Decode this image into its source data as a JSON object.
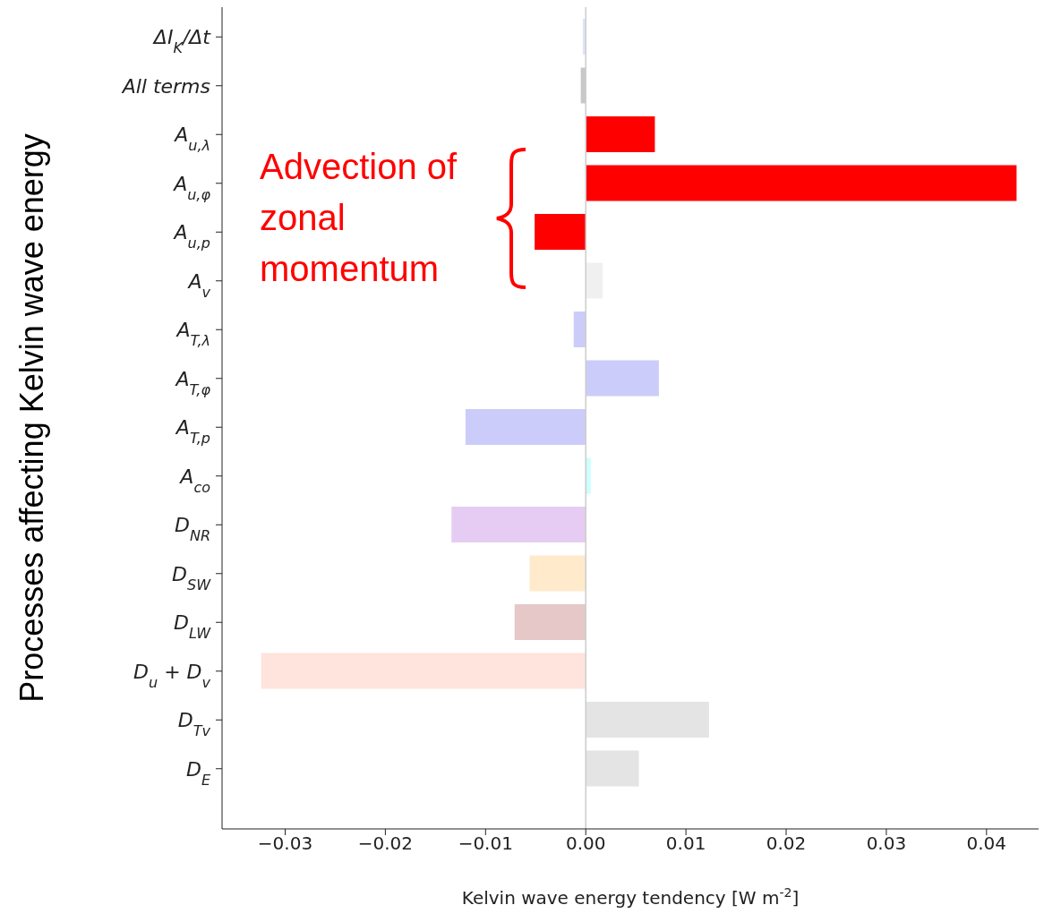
{
  "chart_data": {
    "type": "bar",
    "orientation": "horizontal",
    "ylabel": "Processes affecting Kelvin wave energy",
    "xlabel": "Kelvin wave energy tendency [W m$^{-2}$]",
    "categories": [
      "ΔI$_{K}$/Δt",
      "All terms",
      "A$_{u,λ}$",
      "A$_{u,φ}$",
      "A$_{u,p}$",
      "A$_{v}$",
      "A$_{T,λ}$",
      "A$_{T,φ}$",
      "A$_{T,p}$",
      "A$_{co}$",
      "D$_{NR}$",
      "D$_{SW}$",
      "D$_{LW}$",
      "D$_{u}$ + D$_{v}$",
      "D$_{Tv}$",
      "D$_{E}$"
    ],
    "values": [
      -0.0003,
      -0.0005,
      0.0069,
      0.043,
      -0.0051,
      0.0017,
      -0.0012,
      0.0073,
      -0.012,
      0.0005,
      -0.0134,
      -0.0056,
      -0.0071,
      -0.0324,
      0.0123,
      0.0053
    ],
    "colors": [
      "#dde6f8",
      "#c8c8c8",
      "#ff0000",
      "#ff0000",
      "#ff0000",
      "#f0f0f0",
      "#ccccfa",
      "#ccccfa",
      "#ccccfa",
      "#ccffff",
      "#e6ccf2",
      "#ffeacc",
      "#e6c8c8",
      "#fee4dc",
      "#e4e4e4",
      "#e4e4e4"
    ],
    "xlim": [
      -0.0363,
      0.0452
    ],
    "xticks": [
      {
        "value": -0.03,
        "label": "−0.03"
      },
      {
        "value": -0.02,
        "label": "−0.02"
      },
      {
        "value": -0.01,
        "label": "−0.01"
      },
      {
        "value": 0,
        "label": "0.00"
      },
      {
        "value": 0.01,
        "label": "0.01"
      },
      {
        "value": 0.02,
        "label": "0.02"
      },
      {
        "value": 0.03,
        "label": "0.03"
      },
      {
        "value": 0.04,
        "label": "0.04"
      }
    ],
    "ref_lines": [
      {
        "axis": "x",
        "value": 0,
        "color": "#cccccc"
      }
    ],
    "annotations": [
      "Advection of zonal momentum"
    ],
    "grid": false,
    "legend": false
  }
}
